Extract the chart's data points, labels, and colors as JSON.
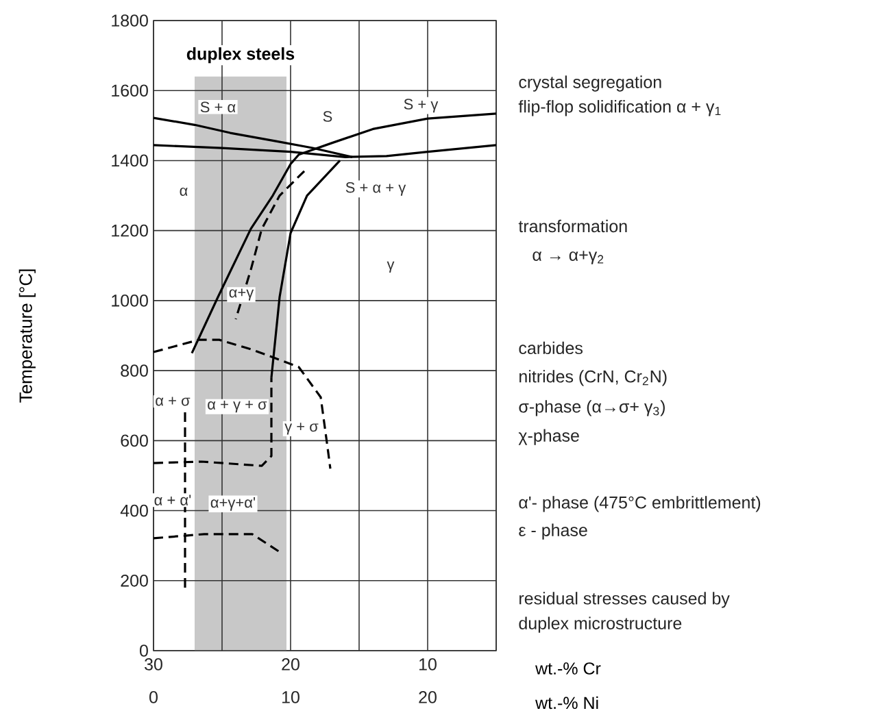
{
  "chart_data": {
    "type": "line",
    "ylabel": "Temperature [°C]",
    "xlabel": "wt.-% Cr",
    "x2label": "wt.-% Ni",
    "xlim": [
      30,
      5
    ],
    "xticks": [
      30,
      {
        "value": 25,
        "label": null
      },
      20,
      {
        "value": 15,
        "label": null
      },
      10,
      {
        "value": 5,
        "label": null
      }
    ],
    "x2lim": [
      0,
      25
    ],
    "x2ticks": [
      0,
      10,
      20
    ],
    "ylim": [
      0,
      1800
    ],
    "yticks": [
      0,
      200,
      400,
      600,
      800,
      1000,
      1200,
      1400,
      1600,
      1800
    ],
    "grid": true,
    "marker": "none",
    "bands": [
      {
        "axis": "x",
        "from": 27,
        "to": 20.3,
        "label": "duplex steels",
        "color": "#c8c8c8"
      }
    ],
    "series": [
      {
        "color": "#000000",
        "line_style": "solid",
        "x": [
          30,
          27,
          24.4,
          21,
          18.4,
          15.5
        ],
        "values": [
          1522,
          1502,
          1479,
          1455,
          1436,
          1410
        ]
      },
      {
        "color": "#000000",
        "line_style": "solid",
        "x": [
          30,
          25,
          20,
          16,
          13,
          10,
          5
        ],
        "values": [
          1444,
          1436,
          1425,
          1410,
          1413,
          1425,
          1444
        ]
      },
      {
        "color": "#000000",
        "line_style": "solid",
        "x": [
          5,
          10,
          14,
          17,
          19.4,
          20,
          21.3,
          22.9,
          25.3,
          27.2
        ],
        "values": [
          1534,
          1520,
          1490,
          1450,
          1417,
          1390,
          1300,
          1205,
          1010,
          850
        ]
      },
      {
        "color": "#000000",
        "line_style": "solid",
        "x": [
          16.4,
          18.8,
          20,
          20.8,
          21.4
        ],
        "values": [
          1400,
          1300,
          1193,
          1010,
          780
        ]
      },
      {
        "color": "#000000",
        "line_style": "dashed",
        "x": [
          19,
          20.8,
          22.1,
          22.9,
          23.6,
          24
        ],
        "values": [
          1370,
          1300,
          1205,
          1088,
          998,
          947
        ]
      },
      {
        "color": "#000000",
        "line_style": "dashed",
        "x": [
          30,
          26.7,
          25.2,
          22.8,
          19.4,
          17.8,
          17.3,
          17.1
        ],
        "values": [
          853,
          888,
          888,
          860,
          810,
          724,
          580,
          520
        ]
      },
      {
        "color": "#000000",
        "line_style": "dashed",
        "x": [
          30,
          26.5,
          22.1,
          21.4,
          21.4
        ],
        "values": [
          536,
          540,
          528,
          556,
          780
        ]
      },
      {
        "color": "#000000",
        "line_style": "dashed",
        "x": [
          30,
          26.3,
          22.8,
          20.8
        ],
        "values": [
          321,
          333,
          333,
          282
        ]
      },
      {
        "color": "#000000",
        "line_style": "dashed",
        "x": [
          27.7,
          27.7
        ],
        "values": [
          724,
          176
        ]
      }
    ],
    "annotations": [
      "S + α",
      "S",
      "S + γ",
      "S + α + γ",
      "α",
      "γ",
      "α+γ",
      "α + γ + σ",
      "α + σ",
      "γ + σ",
      "α + α'",
      "α+γ+α'",
      "crystal segregation",
      "flip-flop solidification α + γ$_{1}$",
      "transformation",
      "α → α+γ$_{2}$",
      "carbides",
      "nitrides (CrN, Cr$_{2}$N)",
      "σ-phase (α→σ+ γ$_{3}$)",
      "χ-phase",
      "α'- phase (475°C embrittlement)",
      "ε - phase",
      "residual stresses caused by",
      "duplex microstructure"
    ]
  }
}
